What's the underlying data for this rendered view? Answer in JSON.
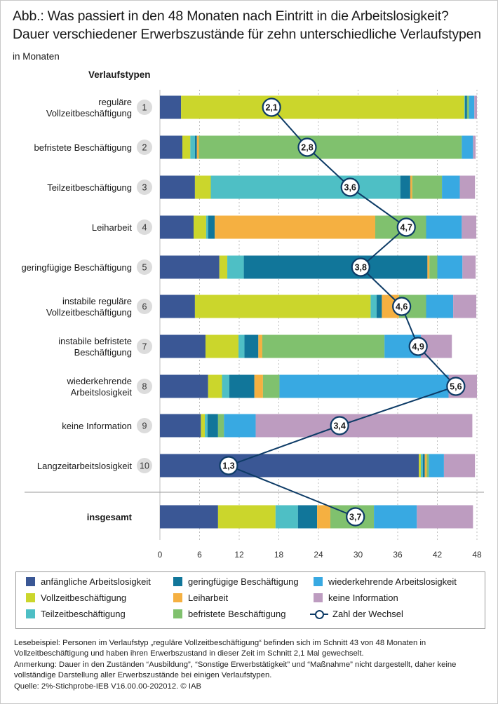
{
  "title_line1": "Abb.: Was passiert in den 48 Monaten nach Eintritt in die Arbeitslosigkeit?",
  "title_line2": "Dauer verschiedener Erwerbszustände für zehn unterschiedliche Verlaufstypen",
  "unit": "in Monaten",
  "row_header": "Verlaufstypen",
  "colors": {
    "anfaengliche": "#3a5795",
    "vollzeit": "#cbd62c",
    "teilzeit": "#4ebfc5",
    "geringfuegig": "#11769a",
    "leiharbeit": "#f5b041",
    "befristet": "#80c16e",
    "wiederkehrend": "#38a9e2",
    "keine": "#bd9cc0",
    "line": "#0d3b66"
  },
  "chart_data": {
    "type": "bar",
    "orientation": "horizontal",
    "stacked": true,
    "xlim": [
      0,
      48
    ],
    "xticks": [
      "0",
      "6",
      "12",
      "18",
      "24",
      "30",
      "36",
      "42",
      "48"
    ],
    "series_names": [
      "anfängliche Arbeitslosigkeit",
      "Vollzeitbeschäftigung",
      "Teilzeitbeschäftigung",
      "geringfügige Beschäftigung",
      "Leiharbeit",
      "befristete Beschäftigung",
      "wiederkehrende Arbeitslosigkeit",
      "keine Information"
    ],
    "line_name": "Zahl der Wechsel",
    "rows": [
      {
        "num": "1",
        "label": [
          "reguläre",
          "Vollzeitbeschäftigung"
        ],
        "values": [
          3.2,
          42.9,
          0.1,
          0.3,
          0,
          0.3,
          0.8,
          0.4
        ],
        "wechsel": "2,1",
        "wechsel_at": 16.9
      },
      {
        "num": "2",
        "label": [
          "befristete Beschäftigung"
        ],
        "values": [
          3.4,
          1.2,
          0.7,
          0.3,
          0.3,
          39.8,
          1.7,
          0.4
        ],
        "wechsel": "2,8",
        "wechsel_at": 22.3
      },
      {
        "num": "3",
        "label": [
          "Teilzeitbeschäftigung"
        ],
        "values": [
          5.3,
          2.4,
          28.7,
          1.5,
          0.3,
          4.5,
          2.7,
          2.3
        ],
        "wechsel": "3,6",
        "wechsel_at": 28.8
      },
      {
        "num": "4",
        "label": [
          "Leiharbeit"
        ],
        "values": [
          5.1,
          1.9,
          0.3,
          1.0,
          24.3,
          7.7,
          5.4,
          2.2
        ],
        "wechsel": "4,7",
        "wechsel_at": 37.3
      },
      {
        "num": "5",
        "label": [
          "geringfügige Beschäftigung"
        ],
        "values": [
          9.0,
          1.2,
          2.5,
          27.8,
          0.3,
          1.2,
          3.8,
          2.0
        ],
        "wechsel": "3,8",
        "wechsel_at": 30.4
      },
      {
        "num": "6",
        "label": [
          "instabile reguläre",
          "Vollzeitbeschäftigung"
        ],
        "values": [
          5.3,
          26.6,
          0.9,
          0.8,
          2.6,
          4.1,
          4.1,
          3.5
        ],
        "wechsel": "4,6",
        "wechsel_at": 36.6
      },
      {
        "num": "7",
        "label": [
          "instabile befristete",
          "Beschäftigung"
        ],
        "values": [
          6.9,
          5.0,
          0.9,
          2.1,
          0.6,
          18.5,
          5.5,
          4.7
        ],
        "wechsel": "4,9",
        "wechsel_at": 39.1
      },
      {
        "num": "8",
        "label": [
          "wiederkehrende",
          "Arbeitslosigkeit"
        ],
        "values": [
          7.3,
          2.1,
          1.1,
          3.8,
          1.3,
          2.5,
          25.6,
          4.3
        ],
        "wechsel": "5,6",
        "wechsel_at": 44.8
      },
      {
        "num": "9",
        "label": [
          "keine Information"
        ],
        "values": [
          6.2,
          0.6,
          0.4,
          1.6,
          0,
          0.9,
          4.8,
          32.8
        ],
        "wechsel": "3,4",
        "wechsel_at": 27.2
      },
      {
        "num": "10",
        "label": [
          "Langzeitarbeitslosigkeit"
        ],
        "values": [
          39.2,
          0.3,
          0.3,
          0.3,
          0.3,
          0.3,
          2.3,
          4.7
        ],
        "wechsel": "1,3",
        "wechsel_at": 10.4
      },
      {
        "num": "",
        "label": [
          "insgesamt"
        ],
        "bold": true,
        "values": [
          8.8,
          8.7,
          3.4,
          2.9,
          2.0,
          6.6,
          6.5,
          8.5
        ],
        "wechsel": "3,7",
        "wechsel_at": 29.6
      }
    ]
  },
  "legend": {
    "anfaengliche": "anfängliche Arbeitslosigkeit",
    "vollzeit": "Vollzeitbeschäftigung",
    "teilzeit": "Teilzeitbeschäftigung",
    "geringfuegig": "geringfügige Beschäftigung",
    "leiharbeit": "Leiharbeit",
    "befristet": "befristete Beschäftigung",
    "wiederkehrend": "wiederkehrende Arbeitslosigkeit",
    "keine": "keine Information",
    "wechsel": "Zahl der Wechsel"
  },
  "notes": {
    "lesebeispiel": "Lesebeispiel: Personen im Verlaufstyp „reguläre Vollzeitbeschäftigung“ befinden sich im Schnitt 43 von 48 Monaten in Vollzeitbeschäftigung und haben ihren Erwerbszustand in dieser Zeit im Schnitt 2,1 Mal gewechselt.",
    "anmerkung": "Anmerkung: Dauer in den Zuständen “Ausbildung”, “Sonstige Erwerbstätigkeit” und “Maßnahme” nicht dargestellt, daher keine vollständige Darstellung aller Erwerbszustände bei einigen Verlaufstypen.",
    "quelle": "Quelle: 2%-Stichprobe-IEB V16.00.00-202012. © IAB"
  }
}
